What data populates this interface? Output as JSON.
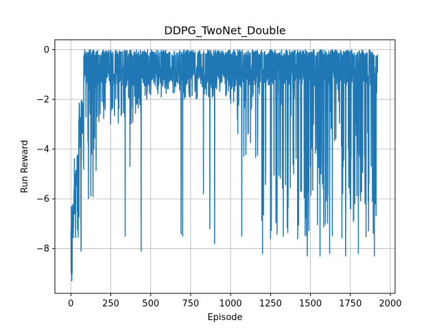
{
  "chart_data": {
    "type": "line",
    "title": "DDPG_TwoNet_Double",
    "xlabel": "Episode",
    "ylabel": "Run Reward",
    "xlim": [
      -100,
      2030
    ],
    "ylim": [
      -9.8,
      0.4
    ],
    "xticks": [
      0,
      250,
      500,
      750,
      1000,
      1250,
      1500,
      1750,
      2000
    ],
    "xtick_labels": [
      "0",
      "250",
      "500",
      "750",
      "1000",
      "1250",
      "1500",
      "1750",
      "2000"
    ],
    "yticks": [
      0,
      -2,
      -4,
      -6,
      -8
    ],
    "ytick_labels": [
      "0",
      "−2",
      "−4",
      "−6",
      "−8"
    ],
    "grid": true,
    "legend": "none",
    "series_color": "#1f77b4",
    "episodes_range": [
      0,
      1920
    ],
    "phases": [
      {
        "x_start": 0,
        "x_end": 20,
        "upper": -6.2,
        "lower": -9.3
      },
      {
        "x_start": 20,
        "x_end": 50,
        "upper": -4.2,
        "lower": -8.0
      },
      {
        "x_start": 50,
        "x_end": 80,
        "upper": -2.0,
        "lower": -7.0
      },
      {
        "x_start": 80,
        "x_end": 160,
        "upper": 0.0,
        "lower": -6.0
      },
      {
        "x_start": 160,
        "x_end": 450,
        "upper": 0.0,
        "lower": -3.0
      },
      {
        "x_start": 450,
        "x_end": 1000,
        "upper": 0.0,
        "lower": -2.0
      },
      {
        "x_start": 1000,
        "x_end": 1180,
        "upper": 0.0,
        "lower": -4.5
      },
      {
        "x_start": 1180,
        "x_end": 1920,
        "upper": 0.0,
        "lower": -7.6
      }
    ],
    "spikes": [
      {
        "x": 6,
        "y": -9.3
      },
      {
        "x": 2,
        "y": -9.0
      },
      {
        "x": 64,
        "y": -8.1
      },
      {
        "x": 110,
        "y": -6.0
      },
      {
        "x": 340,
        "y": -7.5
      },
      {
        "x": 370,
        "y": -4.7
      },
      {
        "x": 440,
        "y": -8.1
      },
      {
        "x": 690,
        "y": -7.4
      },
      {
        "x": 700,
        "y": -7.5
      },
      {
        "x": 830,
        "y": -5.8
      },
      {
        "x": 870,
        "y": -7.2
      },
      {
        "x": 900,
        "y": -7.8
      },
      {
        "x": 1070,
        "y": -7.5
      },
      {
        "x": 1200,
        "y": -8.2
      },
      {
        "x": 1250,
        "y": -7.6
      },
      {
        "x": 1330,
        "y": -7.5
      },
      {
        "x": 1420,
        "y": -7.6
      },
      {
        "x": 1480,
        "y": -8.3
      },
      {
        "x": 1560,
        "y": -8.3
      },
      {
        "x": 1620,
        "y": -8.2
      },
      {
        "x": 1720,
        "y": -8.3
      },
      {
        "x": 1800,
        "y": -8.2
      },
      {
        "x": 1900,
        "y": -8.3
      }
    ]
  }
}
